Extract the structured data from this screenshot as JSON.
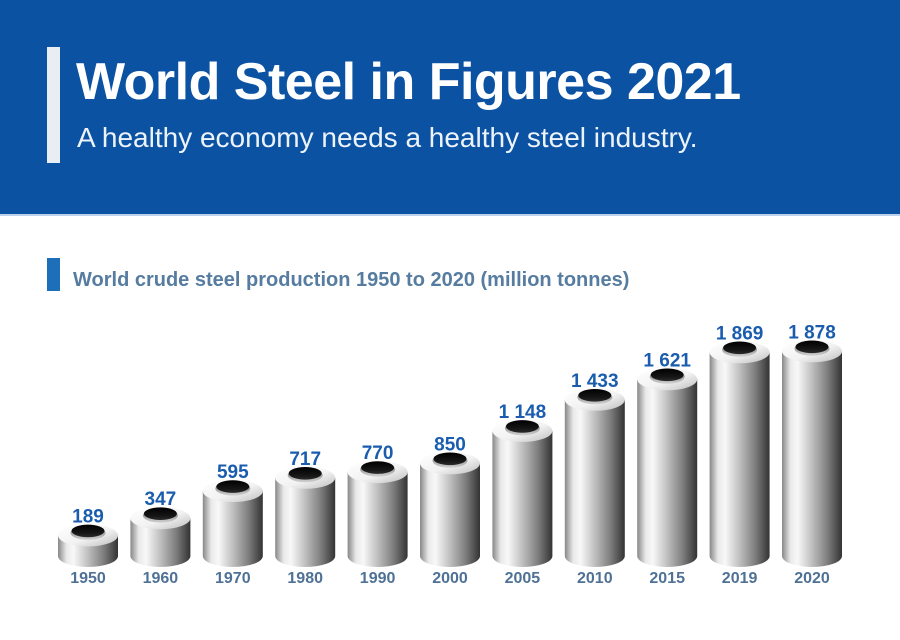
{
  "header": {
    "title": "World Steel in Figures 2021",
    "subtitle": "A healthy economy needs a healthy steel industry."
  },
  "section": {
    "title": "World crude steel production 1950 to 2020 (million tonnes)"
  },
  "theme": {
    "header_bg": "#0B52A3",
    "header_accent": "#E9EEF5",
    "header_underline": "#BBD2EA",
    "section_accent": "#1D6FBA",
    "section_title_color": "#567CA0",
    "value_label_color": "#1A5CAD",
    "year_label_color": "#4E7195"
  },
  "chart_data": {
    "type": "bar",
    "title": "World crude steel production 1950 to 2020 (million tonnes)",
    "unit": "million tonnes",
    "bar_style": "3d-steel-pipe-cylinder",
    "categories": [
      "1950",
      "1960",
      "1970",
      "1980",
      "1990",
      "2000",
      "2005",
      "2010",
      "2015",
      "2019",
      "2020"
    ],
    "values": [
      189,
      347,
      595,
      717,
      770,
      850,
      1148,
      1433,
      1621,
      1869,
      1878
    ],
    "value_labels": [
      "189",
      "347",
      "595",
      "717",
      "770",
      "850",
      "1 148",
      "1 433",
      "1 621",
      "1 869",
      "1 878"
    ],
    "xlabel": "",
    "ylabel": "",
    "ylim": [
      0,
      2000
    ],
    "grid": false,
    "legend": "none"
  }
}
